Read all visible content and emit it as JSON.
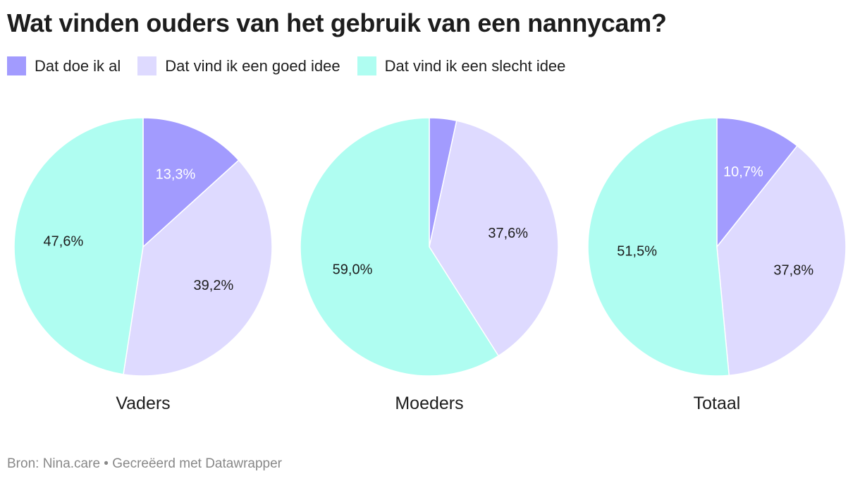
{
  "title": "Wat vinden ouders van het gebruik van een nannycam?",
  "legend": [
    {
      "label": "Dat doe ik al",
      "color": "#a29bfe"
    },
    {
      "label": "Dat vind ik een goed idee",
      "color": "#dedaff"
    },
    {
      "label": "Dat vind ik een slecht idee",
      "color": "#affdf1"
    }
  ],
  "footer": "Bron: Nina.care • Gecreëerd met Datawrapper",
  "chart_data": {
    "type": "pie",
    "categories": [
      "Dat doe ik al",
      "Dat vind ik een goed idee",
      "Dat vind ik een slecht idee"
    ],
    "series": [
      {
        "name": "Vaders",
        "values": [
          13.3,
          39.2,
          47.6
        ],
        "labels": [
          "13,3%",
          "39,2%",
          "47,6%"
        ]
      },
      {
        "name": "Moeders",
        "values": [
          3.4,
          37.6,
          59.0
        ],
        "labels": [
          "",
          "37,6%",
          "59,0%"
        ]
      },
      {
        "name": "Totaal",
        "values": [
          10.7,
          37.8,
          51.5
        ],
        "labels": [
          "10,7%",
          "37,8%",
          "51,5%"
        ]
      }
    ],
    "label_colors": [
      "#ffffff",
      "#1d1d1d",
      "#1d1d1d"
    ]
  }
}
